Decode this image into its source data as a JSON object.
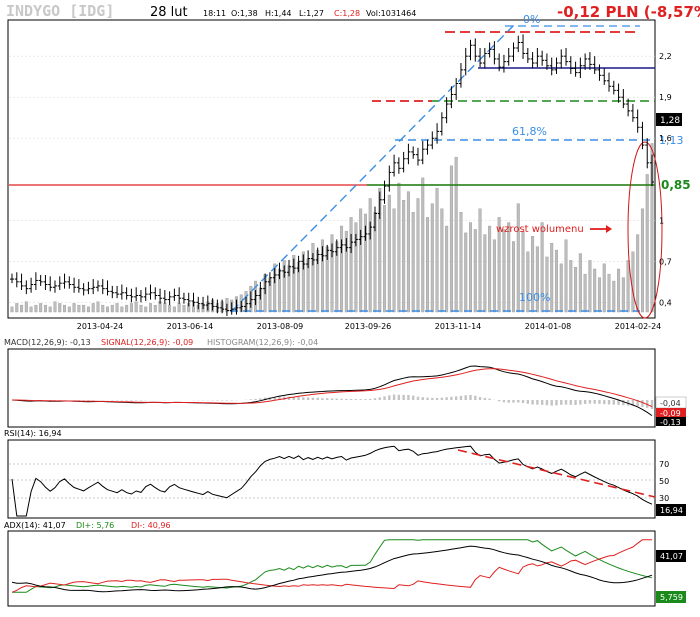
{
  "header": {
    "ticker": "INDYGO [IDG]",
    "date": "28 lut",
    "time": "18:11",
    "open": "O:1,38",
    "high": "H:1,44",
    "low": "L:1,27",
    "close": "C:1,28",
    "volume": "Vol:1031464",
    "change": "-0,12 PLN (-8,57%)"
  },
  "chart_data": [
    {
      "type": "candlestick",
      "panel": "price",
      "x_tick_labels": [
        "2013-04-24",
        "2013-06-14",
        "2013-08-09",
        "2013-09-26",
        "2013-11-14",
        "2014-01-08",
        "2014-02-24"
      ],
      "y_tick_labels": [
        "2,2",
        "1,9",
        "1,6",
        "1",
        "0,7",
        "0,4"
      ],
      "ylim": [
        0.3,
        2.45
      ],
      "close": [
        0.57,
        0.55,
        0.52,
        0.5,
        0.53,
        0.56,
        0.55,
        0.53,
        0.51,
        0.52,
        0.54,
        0.55,
        0.53,
        0.51,
        0.5,
        0.49,
        0.5,
        0.51,
        0.52,
        0.5,
        0.48,
        0.47,
        0.46,
        0.47,
        0.45,
        0.44,
        0.45,
        0.44,
        0.46,
        0.47,
        0.45,
        0.43,
        0.42,
        0.44,
        0.45,
        0.43,
        0.42,
        0.41,
        0.4,
        0.39,
        0.38,
        0.39,
        0.37,
        0.36,
        0.35,
        0.34,
        0.35,
        0.36,
        0.37,
        0.39,
        0.42,
        0.45,
        0.5,
        0.55,
        0.58,
        0.6,
        0.63,
        0.62,
        0.66,
        0.65,
        0.7,
        0.68,
        0.72,
        0.71,
        0.75,
        0.74,
        0.78,
        0.77,
        0.8,
        0.82,
        0.8,
        0.84,
        0.86,
        0.88,
        0.9,
        0.95,
        1.05,
        1.15,
        1.25,
        1.35,
        1.42,
        1.38,
        1.45,
        1.5,
        1.48,
        1.44,
        1.52,
        1.55,
        1.6,
        1.65,
        1.75,
        1.85,
        1.92,
        2.0,
        2.1,
        2.2,
        2.28,
        2.2,
        2.15,
        2.22,
        2.25,
        2.18,
        2.12,
        2.16,
        2.2,
        2.26,
        2.3,
        2.22,
        2.18,
        2.15,
        2.2,
        2.17,
        2.13,
        2.1,
        2.15,
        2.2,
        2.16,
        2.11,
        2.08,
        2.13,
        2.18,
        2.14,
        2.1,
        2.06,
        2.02,
        1.98,
        1.95,
        1.9,
        1.85,
        1.8,
        1.75,
        1.68,
        1.55,
        1.42,
        1.28
      ],
      "volume": [
        0.03,
        0.05,
        0.04,
        0.06,
        0.03,
        0.04,
        0.05,
        0.04,
        0.03,
        0.06,
        0.05,
        0.04,
        0.03,
        0.05,
        0.04,
        0.04,
        0.03,
        0.05,
        0.06,
        0.04,
        0.03,
        0.04,
        0.05,
        0.03,
        0.04,
        0.05,
        0.06,
        0.04,
        0.03,
        0.05,
        0.04,
        0.06,
        0.05,
        0.04,
        0.03,
        0.05,
        0.04,
        0.05,
        0.06,
        0.04,
        0.05,
        0.06,
        0.07,
        0.05,
        0.06,
        0.08,
        0.07,
        0.09,
        0.1,
        0.12,
        0.15,
        0.18,
        0.14,
        0.22,
        0.2,
        0.28,
        0.25,
        0.3,
        0.27,
        0.33,
        0.29,
        0.35,
        0.31,
        0.4,
        0.36,
        0.42,
        0.38,
        0.45,
        0.41,
        0.5,
        0.47,
        0.55,
        0.52,
        0.6,
        0.57,
        0.66,
        0.58,
        0.72,
        0.62,
        0.68,
        0.6,
        0.75,
        0.65,
        0.7,
        0.58,
        0.66,
        0.78,
        0.55,
        0.63,
        0.72,
        0.6,
        0.5,
        0.85,
        0.9,
        0.58,
        0.46,
        0.52,
        0.48,
        0.6,
        0.45,
        0.5,
        0.42,
        0.55,
        0.48,
        0.52,
        0.41,
        0.63,
        0.47,
        0.35,
        0.44,
        0.38,
        0.52,
        0.32,
        0.4,
        0.36,
        0.28,
        0.42,
        0.3,
        0.26,
        0.34,
        0.22,
        0.3,
        0.25,
        0.2,
        0.28,
        0.22,
        0.18,
        0.25,
        0.2,
        0.3,
        0.35,
        0.45,
        0.6,
        0.8,
        0.98
      ],
      "labels": [
        "0%",
        "61,8%",
        "100%"
      ],
      "level_labels": [
        "1,13",
        "0,85"
      ],
      "last_price_label": "1,28",
      "annotation": "wzrost wolumenu"
    },
    {
      "type": "line",
      "panel": "MACD",
      "legend": {
        "macd": "MACD(12,26,9): -0,13",
        "signal": "SIGNAL(12,26,9): -0,09",
        "histogram": "HISTOGRAM(12,26,9): -0,04"
      },
      "value_labels": [
        "-0,04",
        "-0,09",
        "-0,13"
      ]
    },
    {
      "type": "line",
      "panel": "RSI",
      "legend": "RSI(14): 16,94",
      "y_tick_labels": [
        "70",
        "50",
        "30"
      ],
      "value_label": "16,94"
    },
    {
      "type": "line",
      "panel": "ADX",
      "legend": {
        "adx": "ADX(14): 41,07",
        "di_plus": "DI+: 5,76",
        "di_minus": "DI-: 40,96"
      },
      "value_labels": [
        "41,07",
        "5,759"
      ]
    }
  ],
  "colors": {
    "price": "#000000",
    "volume": "#b8b8b8",
    "red_level": "#e02020",
    "green_level": "#1a8a1a",
    "fib_blue": "#3a8ee6",
    "navy": "#1a1a8c",
    "change": "#e02020"
  }
}
